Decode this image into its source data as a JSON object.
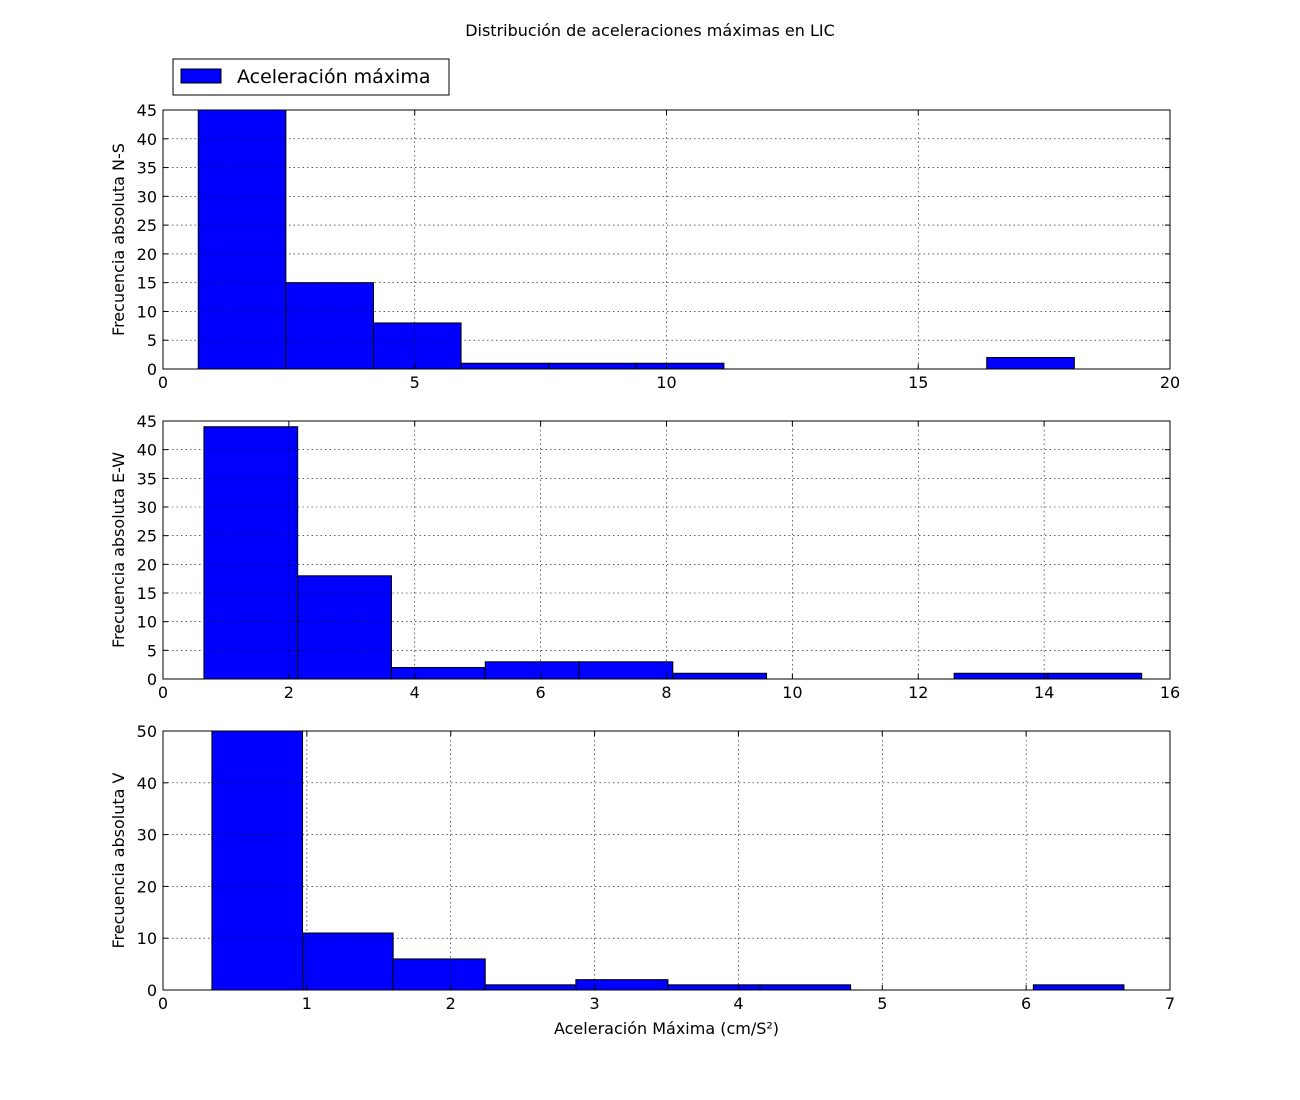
{
  "figure": {
    "title": "Distribución de aceleraciones máximas en LIC",
    "legend": {
      "label": "Aceleración máxima",
      "placement": "top-left"
    }
  },
  "colors": {
    "bar_fill": "#0000ff",
    "bar_edge": "#000000",
    "grid": "#000000"
  },
  "chart_data": [
    {
      "type": "bar",
      "ylabel": "Frecuencia absoluta N-S",
      "xlim": [
        0,
        20
      ],
      "ylim": [
        0,
        45
      ],
      "xticks": [
        0,
        5,
        10,
        15,
        20
      ],
      "yticks": [
        0,
        5,
        10,
        15,
        20,
        25,
        30,
        35,
        40,
        45
      ],
      "grid": true,
      "bins": [
        {
          "x0": 0.7,
          "x1": 2.44,
          "value": 45
        },
        {
          "x0": 2.44,
          "x1": 4.18,
          "value": 15
        },
        {
          "x0": 4.18,
          "x1": 5.92,
          "value": 8
        },
        {
          "x0": 5.92,
          "x1": 7.66,
          "value": 1
        },
        {
          "x0": 7.66,
          "x1": 9.4,
          "value": 1
        },
        {
          "x0": 9.4,
          "x1": 11.14,
          "value": 1
        },
        {
          "x0": 11.14,
          "x1": 12.88,
          "value": 0
        },
        {
          "x0": 12.88,
          "x1": 14.62,
          "value": 0
        },
        {
          "x0": 14.62,
          "x1": 16.36,
          "value": 0
        },
        {
          "x0": 16.36,
          "x1": 18.1,
          "value": 2
        }
      ]
    },
    {
      "type": "bar",
      "ylabel": "Frecuencia absoluta E-W",
      "xlim": [
        0,
        16
      ],
      "ylim": [
        0,
        45
      ],
      "xticks": [
        0,
        2,
        4,
        6,
        8,
        10,
        12,
        14,
        16
      ],
      "yticks": [
        0,
        5,
        10,
        15,
        20,
        25,
        30,
        35,
        40,
        45
      ],
      "grid": true,
      "bins": [
        {
          "x0": 0.65,
          "x1": 2.14,
          "value": 44
        },
        {
          "x0": 2.14,
          "x1": 3.63,
          "value": 18
        },
        {
          "x0": 3.63,
          "x1": 5.12,
          "value": 2
        },
        {
          "x0": 5.12,
          "x1": 6.61,
          "value": 3
        },
        {
          "x0": 6.61,
          "x1": 8.1,
          "value": 3
        },
        {
          "x0": 8.1,
          "x1": 9.59,
          "value": 1
        },
        {
          "x0": 9.59,
          "x1": 11.08,
          "value": 0
        },
        {
          "x0": 11.08,
          "x1": 12.57,
          "value": 0
        },
        {
          "x0": 12.57,
          "x1": 14.06,
          "value": 1
        },
        {
          "x0": 14.06,
          "x1": 15.55,
          "value": 1
        }
      ]
    },
    {
      "type": "bar",
      "ylabel": "Frecuencia absoluta V",
      "xlabel": "Aceleración Máxima (cm/S²)",
      "xlim": [
        0,
        7
      ],
      "ylim": [
        0,
        50
      ],
      "xticks": [
        0,
        1,
        2,
        3,
        4,
        5,
        6,
        7
      ],
      "yticks": [
        0,
        10,
        20,
        30,
        40,
        50
      ],
      "grid": true,
      "bins": [
        {
          "x0": 0.34,
          "x1": 0.97,
          "value": 50
        },
        {
          "x0": 0.97,
          "x1": 1.6,
          "value": 11
        },
        {
          "x0": 1.6,
          "x1": 2.24,
          "value": 6
        },
        {
          "x0": 2.24,
          "x1": 2.87,
          "value": 1
        },
        {
          "x0": 2.87,
          "x1": 3.51,
          "value": 2
        },
        {
          "x0": 3.51,
          "x1": 4.15,
          "value": 1
        },
        {
          "x0": 4.15,
          "x1": 4.78,
          "value": 1
        },
        {
          "x0": 4.78,
          "x1": 5.41,
          "value": 0
        },
        {
          "x0": 5.41,
          "x1": 6.05,
          "value": 0
        },
        {
          "x0": 6.05,
          "x1": 6.68,
          "value": 1
        }
      ]
    }
  ]
}
